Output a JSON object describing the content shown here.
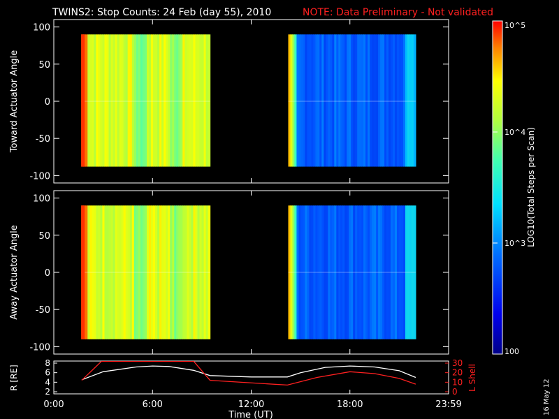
{
  "title": {
    "main": "TWINS2: Stop Counts: 24 Feb (day  55), 2010",
    "note": "NOTE: Data Preliminary - Not validated",
    "note_color": "#ff2020"
  },
  "footer_date": "16 May 12",
  "colorbar": {
    "label": "LOG10(Total Steps per Scan)",
    "ticks": [
      "10^5",
      "10^4",
      "10^3",
      "100"
    ]
  },
  "chart_data": [
    {
      "type": "heatmap",
      "ylabel": "Toward Actuator Angle",
      "ylim": [
        -110,
        110
      ],
      "y_ticks": [
        100,
        50,
        0,
        -50,
        -100
      ],
      "data_extent_y": [
        -88,
        90
      ],
      "scale": "log",
      "z_range": [
        100,
        100000
      ],
      "segments": [
        {
          "start": "1:40",
          "end": "9:30",
          "level": "high (~10^4)"
        },
        {
          "start": "14:15",
          "end": "22:00",
          "level": "low (~10^3 - 10^4)"
        }
      ]
    },
    {
      "type": "heatmap",
      "ylabel": "Away Actuator Angle",
      "ylim": [
        -110,
        110
      ],
      "y_ticks": [
        100,
        50,
        0,
        -50,
        -100
      ],
      "data_extent_y": [
        -90,
        90
      ],
      "scale": "log",
      "z_range": [
        100,
        100000
      ],
      "segments": [
        {
          "start": "1:40",
          "end": "9:30",
          "level": "high (~10^4)"
        },
        {
          "start": "14:15",
          "end": "22:00",
          "level": "low (~10^3 - 10^4)"
        }
      ]
    },
    {
      "type": "line",
      "xlabel": "Time (UT)",
      "x_ticks": [
        "0:00",
        "6:00",
        "12:00",
        "18:00",
        "23:59"
      ],
      "left_axis": {
        "label": "R [RE]",
        "ylim": [
          2,
          8
        ],
        "ticks": [
          2,
          4,
          6,
          8
        ]
      },
      "right_axis": {
        "label": "L Shell",
        "ylim": [
          0,
          30
        ],
        "ticks": [
          0,
          10,
          20,
          30
        ],
        "color": "#ff2020"
      },
      "series": [
        {
          "name": "R",
          "axis": "left",
          "color": "#ffffff",
          "points": [
            [
              1.7,
              4.5
            ],
            [
              3,
              6.2
            ],
            [
              5,
              7.2
            ],
            [
              6,
              7.4
            ],
            [
              7,
              7.3
            ],
            [
              8.5,
              6.5
            ],
            [
              9.5,
              5.4
            ],
            [
              12,
              5.1
            ],
            [
              14.2,
              5.1
            ],
            [
              15,
              6
            ],
            [
              16.5,
              7.1
            ],
            [
              18,
              7.4
            ],
            [
              19.5,
              7.2
            ],
            [
              21,
              6.4
            ],
            [
              22,
              5
            ]
          ]
        },
        {
          "name": "L Shell",
          "axis": "right",
          "color": "#ff2020",
          "points": [
            [
              1.7,
              12
            ],
            [
              2.9,
              32
            ],
            [
              8.5,
              32
            ],
            [
              9.5,
              12
            ],
            [
              14.2,
              7
            ],
            [
              16,
              15
            ],
            [
              18,
              21
            ],
            [
              19.5,
              19
            ],
            [
              21,
              14
            ],
            [
              22,
              8
            ]
          ]
        }
      ]
    }
  ]
}
